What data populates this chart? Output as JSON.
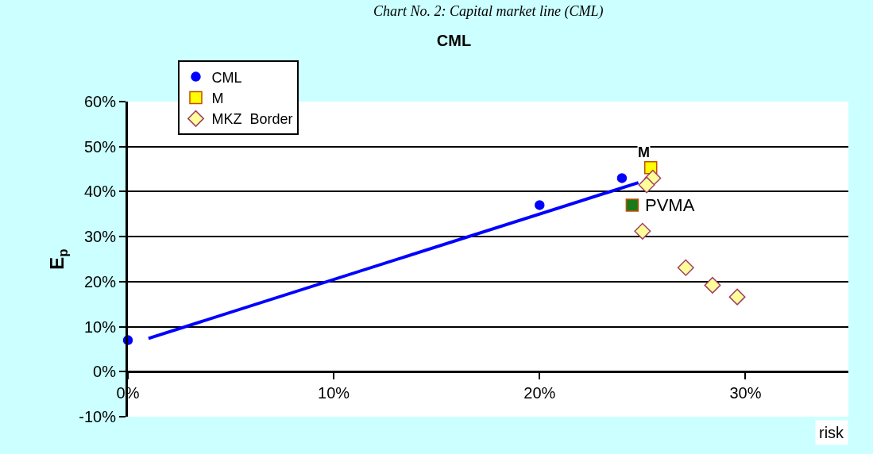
{
  "chart_data": {
    "type": "scatter",
    "title": "CML",
    "subtitle": "Chart No. 2: Capital market line (CML)",
    "xlabel": "risk",
    "ylabel": "E$_{p}$",
    "series": [
      {
        "name": "CML",
        "color": "#0000ff",
        "marker": "circle",
        "x": [
          0,
          20,
          24
        ],
        "values": [
          7,
          37,
          43
        ]
      },
      {
        "name": "M",
        "color": "#ffff00",
        "marker": "square",
        "x": [
          25.4
        ],
        "values": [
          45.3
        ]
      },
      {
        "name": "MKZ  Border",
        "color": "#ffff99",
        "marker": "diamond",
        "x": [
          25.5,
          25.2,
          25.0,
          27.1,
          28.4,
          29.6
        ],
        "values": [
          43,
          41.5,
          31.2,
          23.1,
          19.2,
          16.6
        ]
      },
      {
        "color": "#1a7a1a",
        "marker": "square",
        "x": [
          24.5
        ],
        "values": [
          37
        ]
      },
      {
        "type": "line",
        "color": "#0000ff",
        "marker": "none",
        "line_style": "solid",
        "x": [
          1,
          24.8
        ],
        "values": [
          7.4,
          42
        ]
      }
    ],
    "annotations": [
      {
        "text": "M",
        "x": 25.4,
        "y": 45.3
      },
      {
        "text": "PVMA",
        "x": 24.5,
        "y": 37
      }
    ],
    "xlim": [
      0,
      35
    ],
    "ylim": [
      -10,
      60
    ],
    "xticks": [
      {
        "value": 0,
        "label": "0%"
      },
      {
        "value": 10,
        "label": "10%"
      },
      {
        "value": 20,
        "label": "20%"
      },
      {
        "value": 30,
        "label": "30%"
      }
    ],
    "yticks": [
      {
        "value": -10,
        "label": "-10%"
      },
      {
        "value": 0,
        "label": "0%"
      },
      {
        "value": 10,
        "label": "10%"
      },
      {
        "value": 20,
        "label": "20%"
      },
      {
        "value": 30,
        "label": "30%"
      },
      {
        "value": 40,
        "label": "40%"
      },
      {
        "value": 50,
        "label": "50%"
      },
      {
        "value": 60,
        "label": "60%"
      }
    ],
    "grid": "y",
    "legend": "top left"
  }
}
